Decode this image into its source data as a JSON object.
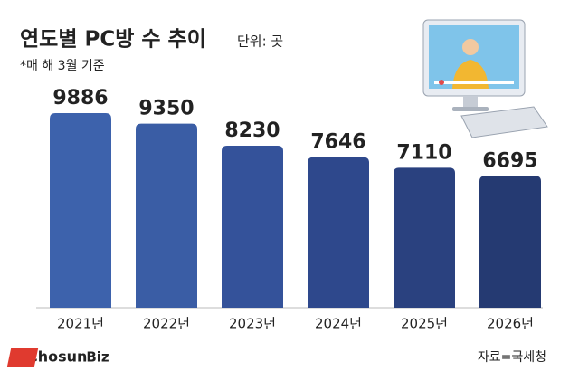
{
  "chart_data": {
    "type": "bar",
    "title": "연도별 PC방 수 추이",
    "unit": "단위: 곳",
    "subtitle": "*매 해 3월 기준",
    "categories": [
      "2021년",
      "2022년",
      "2023년",
      "2024년",
      "2025년",
      "2026년"
    ],
    "values": [
      9886,
      9350,
      8230,
      7646,
      7110,
      6695
    ],
    "colors": [
      "#3d62ac",
      "#3a5da5",
      "#34529a",
      "#2e488c",
      "#2a417f",
      "#253a72"
    ],
    "source": "자료=국세청",
    "logo": [
      "Chosun",
      "Biz"
    ]
  }
}
